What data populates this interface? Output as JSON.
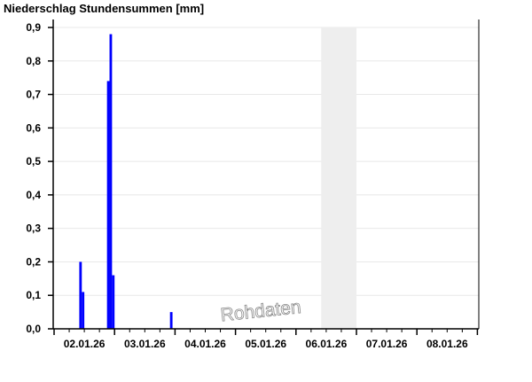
{
  "chart_data": {
    "type": "bar",
    "title": "Niederschlag Stundensummen [mm]",
    "watermark": "Rohdaten",
    "xlabel": "",
    "ylabel": "",
    "ylim": [
      0,
      0.9
    ],
    "yticks": [
      "0,0",
      "0,1",
      "0,2",
      "0,3",
      "0,4",
      "0,5",
      "0,6",
      "0,7",
      "0,8",
      "0,9"
    ],
    "xticks": [
      "02.01.26",
      "03.01.26",
      "04.01.26",
      "05.01.26",
      "06.01.26",
      "07.01.26",
      "08.01.26"
    ],
    "grid": true,
    "bar_color": "#0000ff",
    "shaded_region": {
      "from": "06.01.26 10:00",
      "to": "07.01.26 00:00",
      "color": "#eeeeee"
    },
    "series": [
      {
        "values": [
          {
            "time": "02.01.26 10:00",
            "value": 0.2
          },
          {
            "time": "02.01.26 11:00",
            "value": 0.11
          },
          {
            "time": "02.01.26 21:00",
            "value": 0.74
          },
          {
            "time": "02.01.26 22:00",
            "value": 0.88
          },
          {
            "time": "02.01.26 23:00",
            "value": 0.16
          },
          {
            "time": "03.01.26 22:00",
            "value": 0.05
          }
        ]
      }
    ]
  }
}
